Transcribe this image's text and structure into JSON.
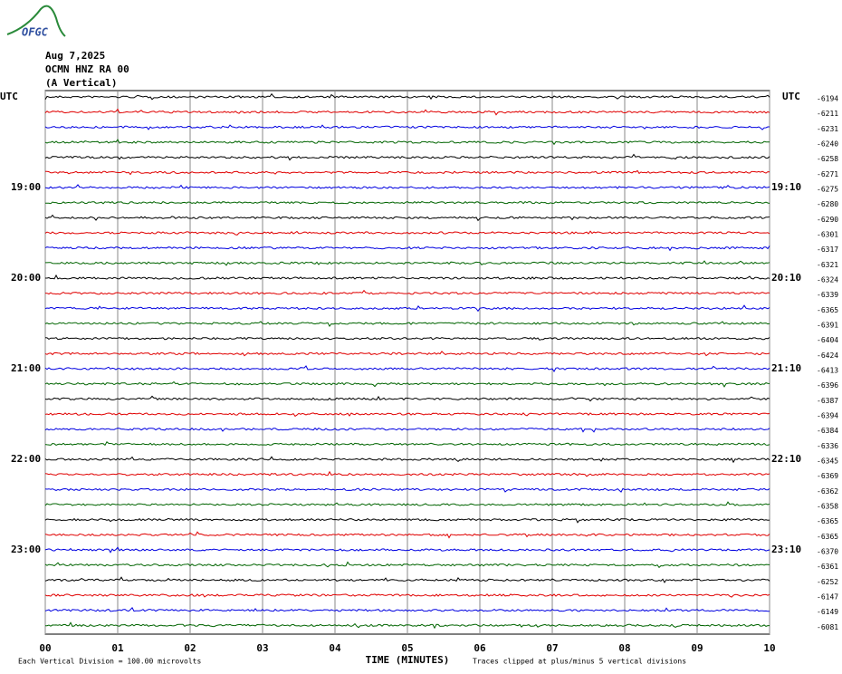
{
  "header": {
    "logo": "OFGC",
    "date": "Aug 7,2025",
    "station": "OCMN HNZ RA 00",
    "component": "(A Vertical)"
  },
  "chart_data": {
    "type": "helicorder",
    "left_axis_title": "UTC",
    "right_axis_title": "UTC",
    "left_hour_labels": [
      "19:00",
      "20:00",
      "21:00",
      "22:00",
      "23:00"
    ],
    "right_hour_labels": [
      "19:10",
      "20:10",
      "21:10",
      "22:10",
      "23:10"
    ],
    "trace_colors": [
      "#000000",
      "#e00000",
      "#0000e0",
      "#006400"
    ],
    "trace_offsets": [
      -6194,
      -6211,
      -6231,
      -6240,
      -6258,
      -6271,
      -6275,
      -6280,
      -6290,
      -6301,
      -6317,
      -6321,
      -6324,
      -6339,
      -6365,
      -6391,
      -6404,
      -6424,
      -6413,
      -6396,
      -6387,
      -6394,
      -6384,
      -6336,
      -6345,
      -6369,
      -6362,
      -6358,
      -6365,
      -6365,
      -6370,
      -6361,
      -6252,
      -6147,
      -6149,
      -6081
    ],
    "xlim": [
      0,
      10
    ],
    "xticks": [
      {
        "value": 0,
        "label": "00"
      },
      {
        "value": 1,
        "label": "01"
      },
      {
        "value": 2,
        "label": "02"
      },
      {
        "value": 3,
        "label": "03"
      },
      {
        "value": 4,
        "label": "04"
      },
      {
        "value": 5,
        "label": "05"
      },
      {
        "value": 6,
        "label": "06"
      },
      {
        "value": 7,
        "label": "07"
      },
      {
        "value": 8,
        "label": "08"
      },
      {
        "value": 9,
        "label": "09"
      },
      {
        "value": 10,
        "label": "10"
      }
    ],
    "x_axis_label": "TIME (MINUTES)",
    "scale_note": "Each Vertical Division =  100.00 microvolts",
    "clip_note": "Traces clipped at plus/minus 5 vertical divisions"
  }
}
